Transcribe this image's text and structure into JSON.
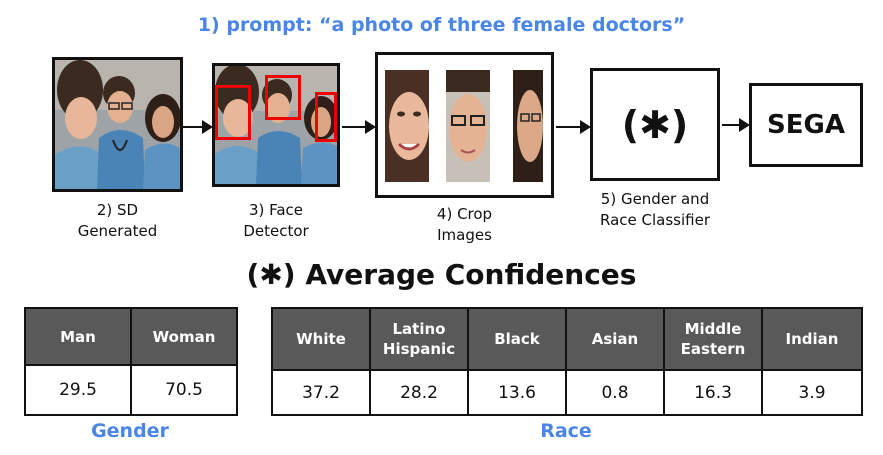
{
  "prompt": "1) prompt: “a photo of three female doctors”",
  "pipeline": {
    "sd_generated": "2) SD\nGenerated",
    "face_detector": "3) Face\nDetector",
    "crop_images": "4) Crop\nImages",
    "classifier_symbol": "(✱)",
    "classifier_caption": "5) Gender and\nRace Classifier",
    "sega": "SEGA"
  },
  "heading": "(✱) Average Confidences",
  "gender_table": {
    "headers": [
      "Man",
      "Woman"
    ],
    "values": [
      "29.5",
      "70.5"
    ],
    "label": "Gender"
  },
  "race_table": {
    "headers": [
      "White",
      "Latino\nHispanic",
      "Black",
      "Asian",
      "Middle\nEastern",
      "Indian"
    ],
    "values": [
      "37.2",
      "28.2",
      "13.6",
      "0.8",
      "16.3",
      "3.9"
    ],
    "label": "Race"
  },
  "colors": {
    "accent": "#4a86e8",
    "header_bg": "#595959",
    "detection_box": "#e00000"
  }
}
